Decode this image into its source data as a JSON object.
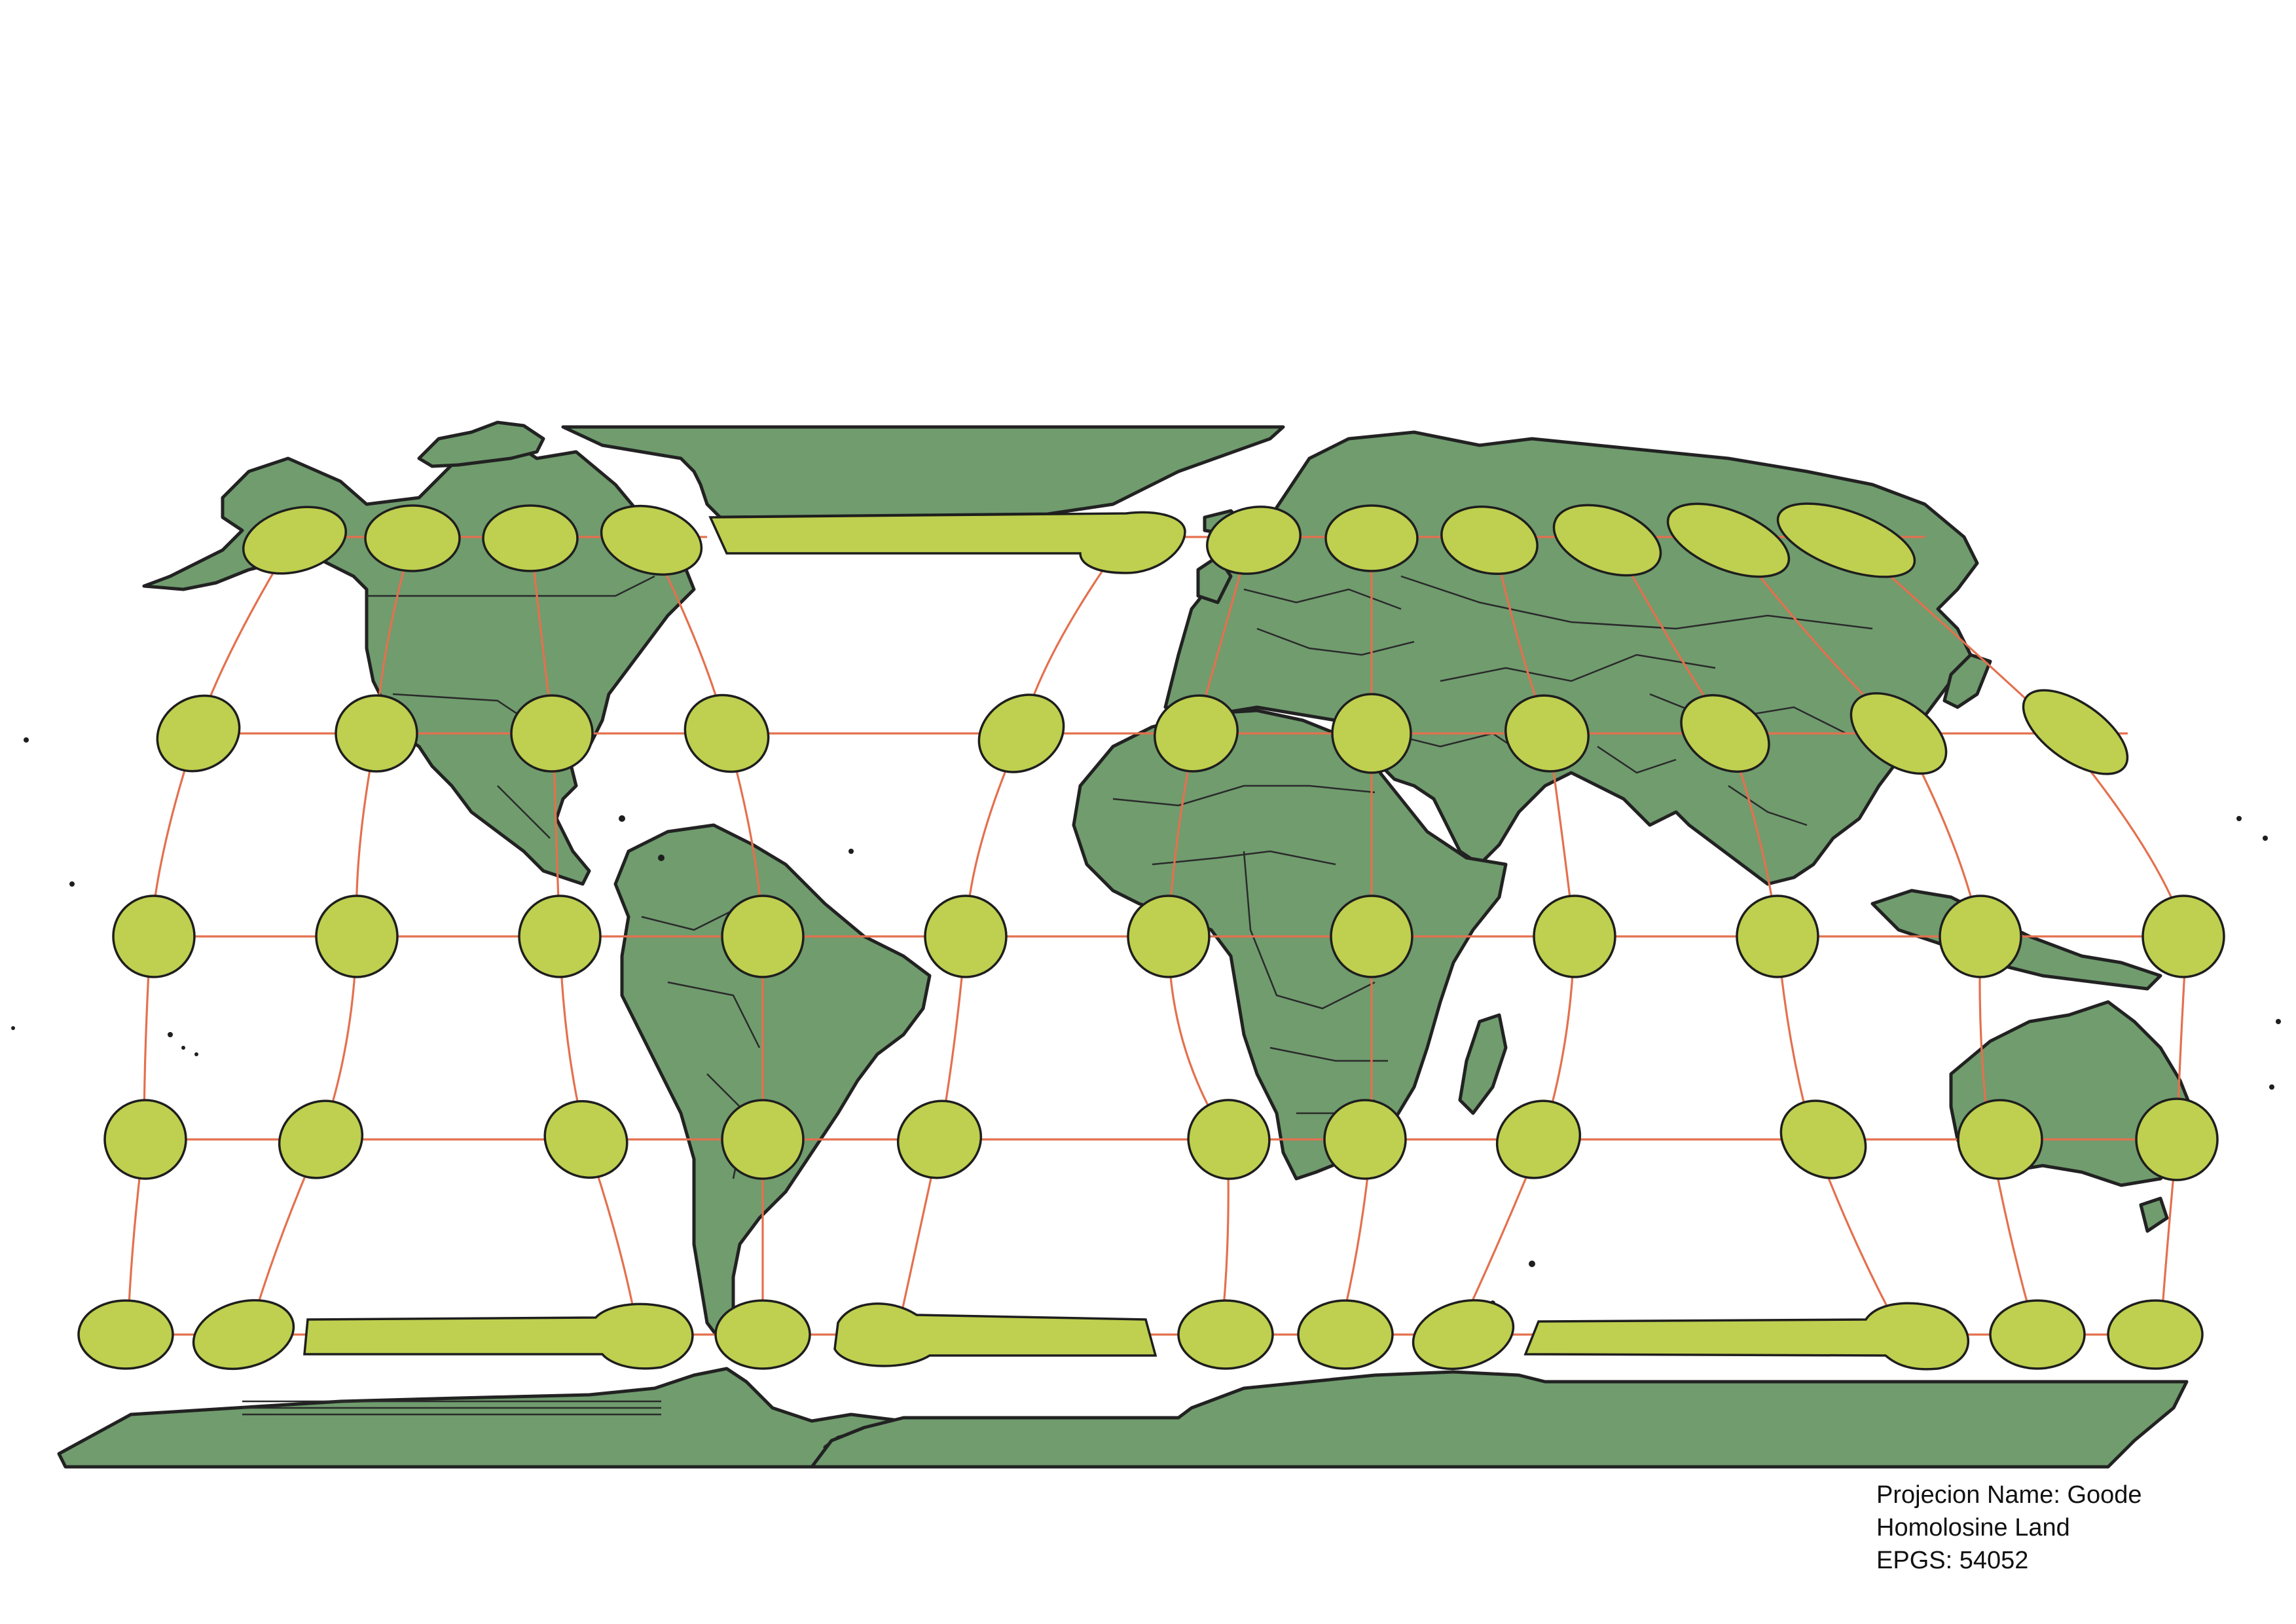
{
  "legend": {
    "line1": "Projecion Name: Goode",
    "line2": "Homolosine Land",
    "line3": "EPGS: 54052"
  },
  "colors": {
    "background": "#ffffff",
    "land": "#709c6e",
    "outline": "#222222",
    "graticule": "#e4704e",
    "tissot_indicatrix": "#bfcf4f"
  },
  "map": {
    "projection": "Goode Homolosine Land",
    "features": [
      "land-masses",
      "country-borders",
      "graticule",
      "tissot-indicatrices"
    ]
  }
}
